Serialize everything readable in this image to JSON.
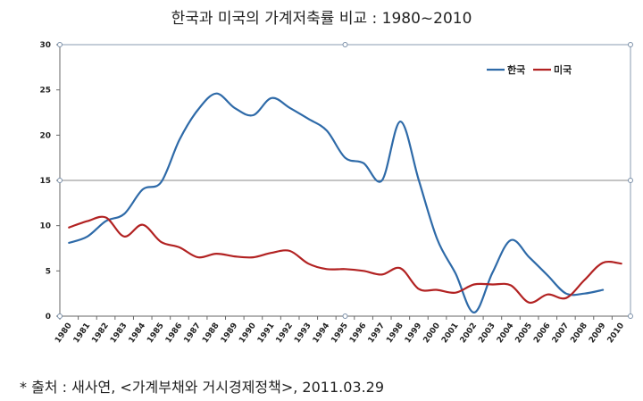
{
  "chart_data": {
    "type": "line",
    "title": "한국과 미국의 가계저축률 비교 : 1980~2010",
    "xlabel": "",
    "ylabel": "",
    "ylim": [
      0,
      30
    ],
    "yticks": [
      0,
      5,
      10,
      15,
      20,
      25,
      30
    ],
    "grid": "major horizontal lines at 15 and 30",
    "legend": "top-right",
    "categories": [
      "1980",
      "1981",
      "1982",
      "1983",
      "1984",
      "1985",
      "1986",
      "1987",
      "1988",
      "1989",
      "1990",
      "1991",
      "1992",
      "1993",
      "1994",
      "1995",
      "1996",
      "1997",
      "1998",
      "1999",
      "2000",
      "2001",
      "2002",
      "2003",
      "2004",
      "2005",
      "2006",
      "2007",
      "2008",
      "2009",
      "2010"
    ],
    "series": [
      {
        "name": "한국",
        "color": "#2E6AA8",
        "values": [
          8.1,
          8.8,
          10.5,
          11.3,
          14.0,
          14.8,
          19.5,
          22.8,
          24.6,
          23.0,
          22.2,
          24.1,
          23.0,
          21.8,
          20.5,
          17.5,
          16.9,
          15.0,
          21.5,
          15.0,
          8.5,
          4.7,
          0.4,
          4.8,
          8.4,
          6.5,
          4.5,
          2.5,
          2.5,
          2.9,
          null
        ]
      },
      {
        "name": "미국",
        "color": "#B22222",
        "values": [
          9.8,
          10.5,
          10.9,
          8.8,
          10.1,
          8.2,
          7.6,
          6.5,
          6.9,
          6.6,
          6.5,
          7.0,
          7.2,
          5.8,
          5.2,
          5.2,
          5.0,
          4.6,
          5.3,
          3.0,
          2.9,
          2.6,
          3.5,
          3.5,
          3.4,
          1.5,
          2.4,
          2.0,
          4.0,
          5.9,
          5.8
        ]
      }
    ]
  },
  "footer": {
    "source": "* 출처 : 새사연, <가계부채와 거시경제정책>, 2011.03.29"
  }
}
